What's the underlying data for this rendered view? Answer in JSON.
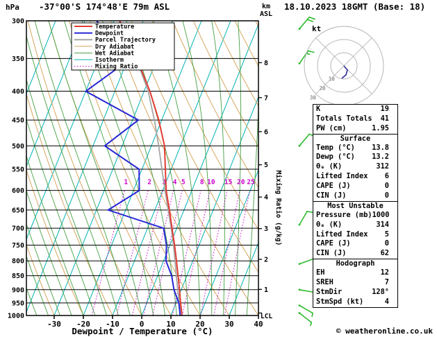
{
  "header": {
    "pressure_unit": "hPa",
    "station": "-37°00'S 174°48'E 79m ASL",
    "datetime": "18.10.2023 18GMT (Base: 18)",
    "altitude_unit_line1": "km",
    "altitude_unit_line2": "ASL"
  },
  "legend": [
    {
      "label": "Temperature",
      "color": "#e23b33",
      "width": 2,
      "dash": ""
    },
    {
      "label": "Dewpoint",
      "color": "#2626d8",
      "width": 2,
      "dash": ""
    },
    {
      "label": "Parcel Trajectory",
      "color": "#a6a6a6",
      "width": 2,
      "dash": ""
    },
    {
      "label": "Dry Adiabat",
      "color": "#d6a65e",
      "width": 1,
      "dash": ""
    },
    {
      "label": "Wet Adiabat",
      "color": "#44a044",
      "width": 1,
      "dash": ""
    },
    {
      "label": "Isotherm",
      "color": "#00b2b2",
      "width": 1,
      "dash": ""
    },
    {
      "label": "Mixing Ratio",
      "color": "#cc00cc",
      "width": 1,
      "dash": "1.5,2.5"
    }
  ],
  "axes": {
    "pressure_ticks": [
      300,
      350,
      400,
      450,
      500,
      550,
      600,
      650,
      700,
      750,
      800,
      850,
      900,
      950,
      1000
    ],
    "temp_ticks": [
      -30,
      -20,
      -10,
      0,
      10,
      20,
      30,
      40
    ],
    "xlabel": "Dewpoint / Temperature (°C)",
    "km_ticks": [
      1,
      2,
      3,
      4,
      5,
      6,
      7,
      8
    ],
    "lcl_label": "LCL",
    "mixing_label": "Mixing Ratio (g/kg)",
    "mixing_values": [
      1,
      2,
      3,
      4,
      5,
      8,
      10,
      15,
      20,
      25
    ]
  },
  "chart_data": {
    "type": "skewt-sounding",
    "p_range_hPa": [
      300,
      1000
    ],
    "t_axis_range_C": [
      -40,
      40
    ],
    "pressure_hPa": [
      1000,
      950,
      900,
      850,
      800,
      750,
      700,
      650,
      600,
      550,
      500,
      450,
      400,
      350,
      300
    ],
    "temperature_C": [
      13.8,
      11.6,
      9.4,
      7.0,
      4.4,
      1.6,
      -1.6,
      -5.0,
      -8.8,
      -12.0,
      -15.5,
      -21.0,
      -28.0,
      -37.0,
      -48.0
    ],
    "dewpoint_C": [
      13.2,
      11.0,
      7.5,
      4.8,
      0.8,
      -1.2,
      -4.5,
      -26.0,
      -18.0,
      -21.0,
      -36.0,
      -28.0,
      -50.0,
      -39.0,
      -56.0
    ],
    "parcel_C": [
      13.8,
      11.2,
      8.8,
      6.4,
      3.9,
      1.2,
      -1.9,
      -5.4,
      -9.2,
      -13.2,
      -17.5,
      -22.5,
      -28.6,
      -37.2,
      -48.2
    ],
    "lcl_hPa": 990,
    "wind_barbs": [
      {
        "p": 310,
        "speed_kt": 20,
        "dir_deg": 40
      },
      {
        "p": 357,
        "speed_kt": 15,
        "dir_deg": 35
      },
      {
        "p": 500,
        "speed_kt": 10,
        "dir_deg": 40
      },
      {
        "p": 690,
        "speed_kt": 10,
        "dir_deg": 30
      },
      {
        "p": 810,
        "speed_kt": 5,
        "dir_deg": 70
      },
      {
        "p": 900,
        "speed_kt": 5,
        "dir_deg": 100
      },
      {
        "p": 960,
        "speed_kt": 5,
        "dir_deg": 120
      },
      {
        "p": 990,
        "speed_kt": 4,
        "dir_deg": 128
      }
    ]
  },
  "hodograph": {
    "unit_label": "kt",
    "ring_labels": [
      "10",
      "20",
      "30"
    ],
    "trace": [
      [
        0,
        0
      ],
      [
        5,
        6
      ],
      [
        3,
        13
      ],
      [
        -3,
        18
      ]
    ]
  },
  "table": {
    "rows_top": [
      {
        "label": "K",
        "value": "19"
      },
      {
        "label": "Totals Totals",
        "value": "41"
      },
      {
        "label": "PW (cm)",
        "value": "1.95"
      }
    ],
    "sections": [
      {
        "title": "Surface",
        "rows": [
          {
            "label": "Temp (°C)",
            "value": "13.8"
          },
          {
            "label": "Dewp (°C)",
            "value": "13.2"
          },
          {
            "label": "θₑ (K)",
            "value": "312"
          },
          {
            "label": "Lifted Index",
            "value": "6"
          },
          {
            "label": "CAPE (J)",
            "value": "0"
          },
          {
            "label": "CIN (J)",
            "value": "0"
          }
        ]
      },
      {
        "title": "Most Unstable",
        "rows": [
          {
            "label": "Pressure (mb)",
            "value": "1000"
          },
          {
            "label": "θₑ (K)",
            "value": "314"
          },
          {
            "label": "Lifted Index",
            "value": "5"
          },
          {
            "label": "CAPE (J)",
            "value": "0"
          },
          {
            "label": "CIN (J)",
            "value": "62"
          }
        ]
      },
      {
        "title": "Hodograph",
        "rows": [
          {
            "label": "EH",
            "value": "12"
          },
          {
            "label": "SREH",
            "value": "7"
          },
          {
            "label": "StmDir",
            "value": "128°"
          },
          {
            "label": "StmSpd (kt)",
            "value": "4"
          }
        ]
      }
    ]
  },
  "footer": {
    "copyright": "© weatheronline.co.uk"
  },
  "colors": {
    "temperature": "#e23b33",
    "dewpoint": "#2626d8",
    "parcel": "#a6a6a6",
    "dry_adiabat": "#d6a65e",
    "wet_adiabat": "#44a044",
    "isotherm": "#00b2b2",
    "mixing_ratio": "#cc00cc",
    "wind_barb": "#2dbb2d",
    "frame": "#000000",
    "hodograph_grid": "#b5b5b5",
    "hodograph_trace": "#2a2a99"
  }
}
